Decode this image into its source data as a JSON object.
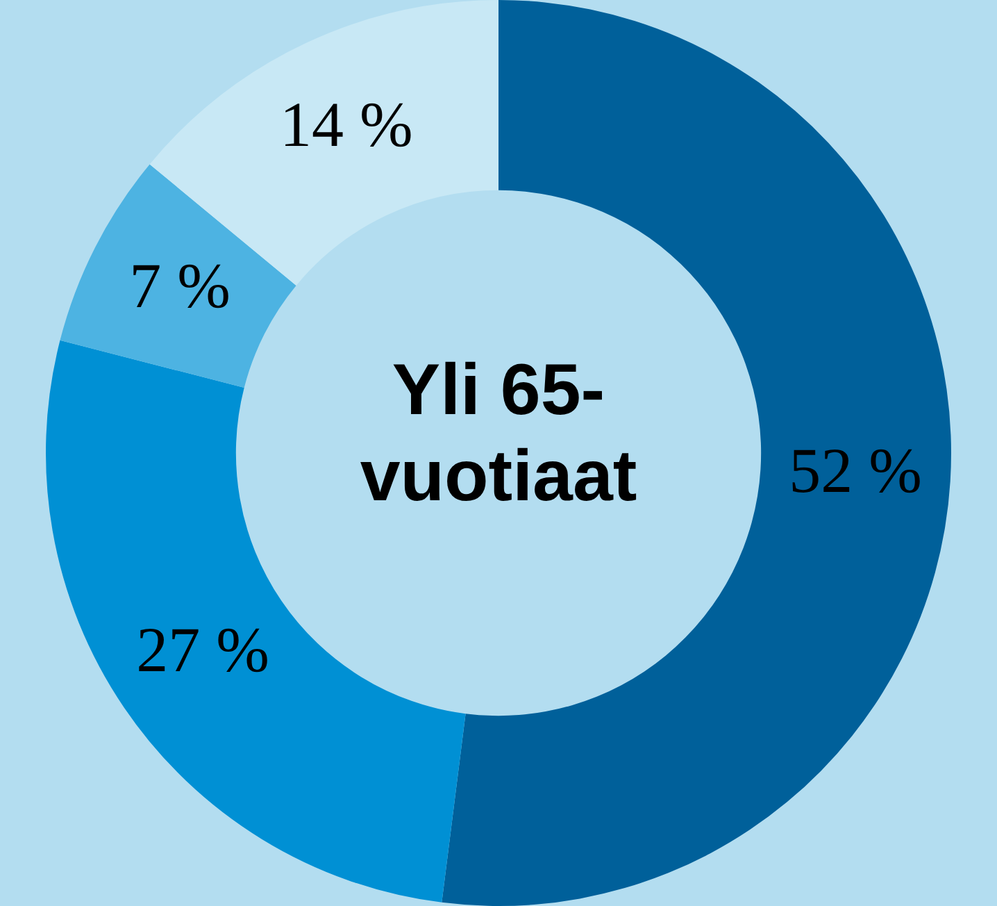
{
  "chart_data": {
    "type": "donut",
    "title": "Yli 65-vuotiaat",
    "categories": [
      null,
      null,
      null,
      null
    ],
    "values": [
      52,
      27,
      7,
      14
    ],
    "colors": [
      "#00609a",
      "#0090d4",
      "#4db3e2",
      "#c8e8f5"
    ],
    "value_labels": [
      "52 %",
      "27 %",
      "7 %",
      "14 %"
    ],
    "legend": false
  }
}
